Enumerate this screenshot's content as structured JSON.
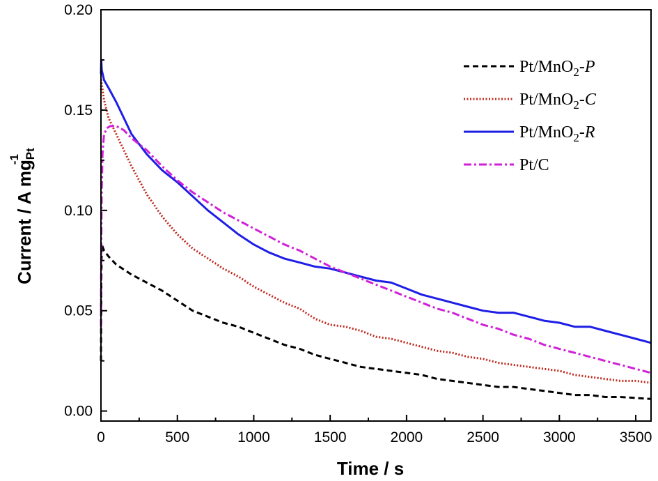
{
  "chart_data": {
    "type": "line",
    "xlabel": "Time / s",
    "ylabel": {
      "main": "Current / A mg",
      "sub": "Pt",
      "sup": "-1"
    },
    "xlim": [
      0,
      3600
    ],
    "ylim": [
      -0.005,
      0.2
    ],
    "xticks": [
      0,
      500,
      1000,
      1500,
      2000,
      2500,
      3000,
      3500
    ],
    "xtick_labels": [
      "0",
      "500",
      "1000",
      "1500",
      "2000",
      "2500",
      "3000",
      "3500"
    ],
    "yticks": [
      0.0,
      0.05,
      0.1,
      0.15,
      0.2
    ],
    "ytick_labels": [
      "0.00",
      "0.05",
      "0.10",
      "0.15",
      "0.20"
    ],
    "grid": false,
    "legend_position": "top-right",
    "series": [
      {
        "name": "Pt/MnO2-P",
        "label": {
          "prefix": "Pt/MnO",
          "sub": "2",
          "suffix": "-",
          "italic": "P"
        },
        "color": "#000000",
        "dash": "dashed",
        "x": [
          0,
          2,
          5,
          20,
          50,
          100,
          200,
          300,
          400,
          500,
          600,
          700,
          800,
          900,
          1000,
          1100,
          1200,
          1300,
          1400,
          1500,
          1600,
          1700,
          1800,
          1900,
          2000,
          2100,
          2200,
          2300,
          2400,
          2500,
          2600,
          2700,
          2800,
          2900,
          3000,
          3100,
          3200,
          3300,
          3400,
          3500,
          3600
        ],
        "y": [
          0.025,
          0.06,
          0.083,
          0.08,
          0.077,
          0.073,
          0.068,
          0.064,
          0.06,
          0.055,
          0.05,
          0.047,
          0.044,
          0.042,
          0.039,
          0.036,
          0.033,
          0.031,
          0.028,
          0.026,
          0.024,
          0.022,
          0.021,
          0.02,
          0.019,
          0.018,
          0.016,
          0.015,
          0.014,
          0.013,
          0.012,
          0.012,
          0.011,
          0.01,
          0.009,
          0.008,
          0.008,
          0.007,
          0.007,
          0.0065,
          0.006
        ]
      },
      {
        "name": "Pt/MnO2-C",
        "label": {
          "prefix": "Pt/MnO",
          "sub": "2",
          "suffix": "-",
          "italic": "C"
        },
        "color": "#c0281e",
        "dash": "dotted",
        "x": [
          0,
          2,
          5,
          20,
          50,
          100,
          150,
          200,
          300,
          400,
          500,
          600,
          700,
          800,
          900,
          1000,
          1100,
          1200,
          1300,
          1400,
          1500,
          1600,
          1700,
          1800,
          1900,
          2000,
          2100,
          2200,
          2300,
          2400,
          2500,
          2600,
          2700,
          2800,
          2900,
          3000,
          3100,
          3200,
          3300,
          3400,
          3500,
          3600
        ],
        "y": [
          0.16,
          0.165,
          0.163,
          0.155,
          0.146,
          0.138,
          0.13,
          0.122,
          0.108,
          0.097,
          0.088,
          0.081,
          0.076,
          0.071,
          0.067,
          0.062,
          0.058,
          0.054,
          0.051,
          0.046,
          0.043,
          0.042,
          0.04,
          0.037,
          0.036,
          0.034,
          0.032,
          0.03,
          0.029,
          0.027,
          0.026,
          0.024,
          0.023,
          0.022,
          0.021,
          0.02,
          0.018,
          0.017,
          0.016,
          0.015,
          0.015,
          0.014
        ]
      },
      {
        "name": "Pt/MnO2-R",
        "label": {
          "prefix": "Pt/MnO",
          "sub": "2",
          "suffix": "-",
          "italic": "R"
        },
        "color": "#1e1ee6",
        "dash": "solid",
        "x": [
          0,
          2,
          5,
          20,
          50,
          100,
          200,
          300,
          400,
          500,
          600,
          700,
          800,
          900,
          1000,
          1100,
          1200,
          1300,
          1400,
          1500,
          1600,
          1700,
          1800,
          1900,
          2000,
          2100,
          2200,
          2300,
          2400,
          2500,
          2600,
          2700,
          2800,
          2900,
          3000,
          3100,
          3200,
          3300,
          3400,
          3500,
          3600
        ],
        "y": [
          0.168,
          0.175,
          0.17,
          0.165,
          0.161,
          0.154,
          0.138,
          0.128,
          0.12,
          0.114,
          0.107,
          0.1,
          0.094,
          0.088,
          0.083,
          0.079,
          0.076,
          0.074,
          0.072,
          0.071,
          0.069,
          0.067,
          0.065,
          0.064,
          0.061,
          0.058,
          0.056,
          0.054,
          0.052,
          0.05,
          0.049,
          0.049,
          0.047,
          0.045,
          0.044,
          0.042,
          0.042,
          0.04,
          0.038,
          0.036,
          0.034
        ]
      },
      {
        "name": "Pt/C",
        "label": {
          "prefix": "Pt/C",
          "sub": "",
          "suffix": "",
          "italic": ""
        },
        "color": "#d020d8",
        "dash": "dashdot",
        "x": [
          0,
          2,
          5,
          10,
          20,
          40,
          60,
          80,
          100,
          150,
          200,
          300,
          400,
          500,
          600,
          700,
          800,
          900,
          1000,
          1100,
          1200,
          1300,
          1400,
          1500,
          1600,
          1700,
          1800,
          1900,
          2000,
          2100,
          2200,
          2300,
          2400,
          2500,
          2600,
          2700,
          2800,
          2900,
          3000,
          3100,
          3200,
          3300,
          3400,
          3500,
          3600
        ],
        "y": [
          0.042,
          0.08,
          0.11,
          0.128,
          0.138,
          0.141,
          0.142,
          0.142,
          0.142,
          0.14,
          0.136,
          0.13,
          0.122,
          0.115,
          0.109,
          0.104,
          0.099,
          0.095,
          0.091,
          0.087,
          0.083,
          0.08,
          0.076,
          0.072,
          0.069,
          0.066,
          0.063,
          0.06,
          0.057,
          0.054,
          0.051,
          0.049,
          0.046,
          0.043,
          0.041,
          0.038,
          0.036,
          0.033,
          0.031,
          0.029,
          0.027,
          0.025,
          0.023,
          0.021,
          0.019
        ]
      }
    ]
  }
}
